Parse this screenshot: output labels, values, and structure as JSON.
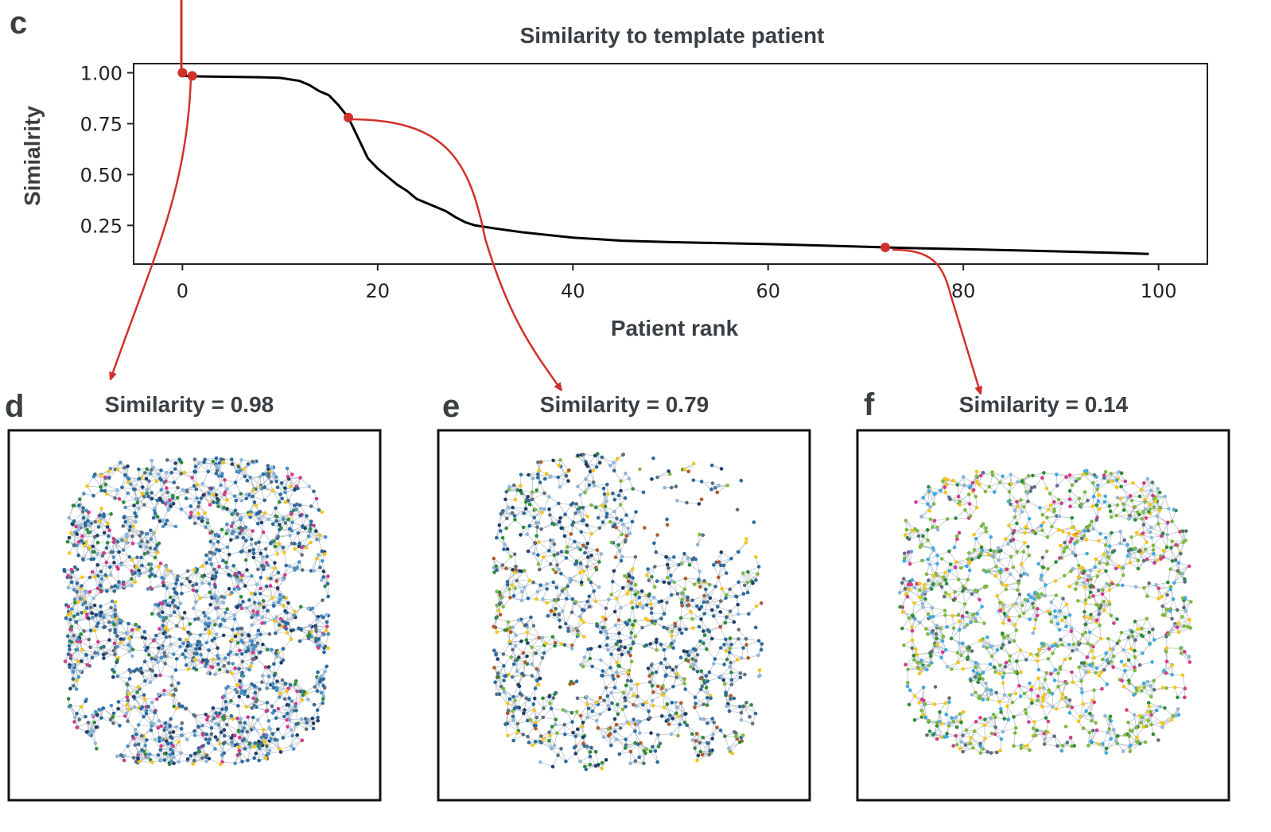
{
  "panels": {
    "c": "c",
    "d": "d",
    "e": "e",
    "f": "f"
  },
  "chart_data": {
    "type": "line",
    "title": "Similarity to template patient",
    "xlabel": "Patient rank",
    "ylabel": "Simialrity",
    "xlim": [
      -5,
      105
    ],
    "ylim": [
      0.06,
      1.045
    ],
    "xticks": [
      0,
      20,
      40,
      60,
      80,
      100
    ],
    "yticks": [
      0.25,
      0.5,
      0.75,
      1.0
    ],
    "ytick_labels": [
      "0.25",
      "0.50",
      "0.75",
      "1.00"
    ],
    "series": [
      {
        "name": "similarity",
        "x": [
          0,
          2,
          5,
          8,
          10,
          12,
          13,
          14,
          15,
          16,
          17,
          18,
          19,
          20,
          21,
          22,
          23,
          24,
          25,
          26,
          27,
          28,
          29,
          30,
          32,
          35,
          40,
          45,
          50,
          55,
          60,
          65,
          70,
          72,
          75,
          80,
          85,
          90,
          95,
          99
        ],
        "y": [
          0.985,
          0.982,
          0.98,
          0.978,
          0.975,
          0.96,
          0.94,
          0.91,
          0.89,
          0.84,
          0.78,
          0.68,
          0.58,
          0.53,
          0.49,
          0.45,
          0.42,
          0.38,
          0.36,
          0.34,
          0.32,
          0.29,
          0.265,
          0.25,
          0.235,
          0.215,
          0.19,
          0.175,
          0.168,
          0.163,
          0.158,
          0.152,
          0.145,
          0.142,
          0.138,
          0.133,
          0.128,
          0.122,
          0.116,
          0.11
        ]
      }
    ],
    "highlighted_points": [
      {
        "x": 0,
        "y": 1.0
      },
      {
        "x": 1,
        "y": 0.985
      },
      {
        "x": 17,
        "y": 0.78
      },
      {
        "x": 72,
        "y": 0.142
      }
    ],
    "subplots": [
      {
        "panel": "d",
        "title": "Similarity = 0.98",
        "similarity": 0.98
      },
      {
        "panel": "e",
        "title": "Similarity = 0.79",
        "similarity": 0.79
      },
      {
        "panel": "f",
        "title": "Similarity = 0.14",
        "similarity": 0.14
      }
    ]
  },
  "colors": {
    "line": "#000000",
    "marker": "#d0312d",
    "text": "#3a3f44",
    "network_d": [
      "#2b6a9e",
      "#4a8fc4",
      "#5b6f80",
      "#8fb5d8",
      "#1f3f66",
      "#d23a8a",
      "#f5c518",
      "#2e8b3a"
    ],
    "network_e": [
      "#2b6a9e",
      "#5b6f80",
      "#8fb5d8",
      "#1f3f66",
      "#2e8b3a",
      "#7fb842",
      "#f5c518",
      "#b05a2a"
    ],
    "network_f": [
      "#7fb842",
      "#f5c518",
      "#3fa9e0",
      "#2e8b3a",
      "#8fb5d8",
      "#d23a8a",
      "#5b6f80"
    ]
  }
}
